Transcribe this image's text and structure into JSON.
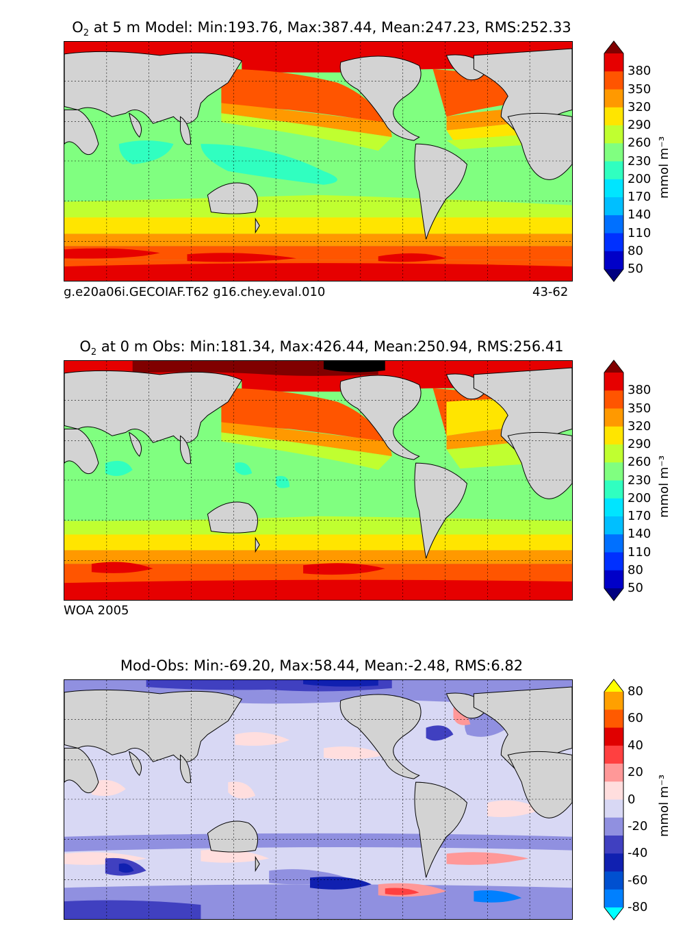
{
  "panels": [
    {
      "title_main": "O",
      "title_sub": "2",
      "title_rest": "  at 5 m Model: Min:193.76, Max:387.44, Mean:247.23, RMS:252.33",
      "footer_left": "g.e20a06i.GECOIAF.T62 g16.chey.eval.010",
      "footer_right": "43-62",
      "colorbar_ticks": [
        "380",
        "350",
        "320",
        "290",
        "260",
        "230",
        "200",
        "170",
        "140",
        "110",
        "80",
        "50"
      ],
      "colorbar_unit": "mmol m⁻³"
    },
    {
      "title_main": "O",
      "title_sub": "2",
      "title_rest": "  at 0 m Obs: Min:181.34, Max:426.44, Mean:250.94, RMS:256.41",
      "footer_left": "WOA 2005",
      "footer_right": "",
      "colorbar_ticks": [
        "380",
        "350",
        "320",
        "290",
        "260",
        "230",
        "200",
        "170",
        "140",
        "110",
        "80",
        "50"
      ],
      "colorbar_unit": "mmol m⁻³"
    },
    {
      "title_main": "Mod-Obs: Min:-69.20, Max:58.44, Mean:-2.48, RMS:6.82",
      "title_sub": "",
      "title_rest": "",
      "footer_left": "",
      "footer_right": "",
      "colorbar_ticks": [
        "80",
        "60",
        "40",
        "20",
        "0",
        "-20",
        "-40",
        "-60",
        "-80"
      ],
      "colorbar_unit": "mmol m⁻³"
    }
  ],
  "colors": {
    "land": "#d3d3d3",
    "conc_levels": [
      "#000080",
      "#0000c8",
      "#0030ff",
      "#0070ff",
      "#00bfff",
      "#00e5ff",
      "#30ffc0",
      "#80ff80",
      "#c0ff30",
      "#ffe500",
      "#ff9900",
      "#ff5500",
      "#e60000",
      "#800000"
    ],
    "diff_levels": [
      "#00ffff",
      "#0080ff",
      "#0050d0",
      "#1020b0",
      "#4040c0",
      "#9090e0",
      "#d8d8f4",
      "#ffdede",
      "#ff9898",
      "#ff4040",
      "#e00000",
      "#ff5a00",
      "#ffa000",
      "#ffff00"
    ]
  }
}
